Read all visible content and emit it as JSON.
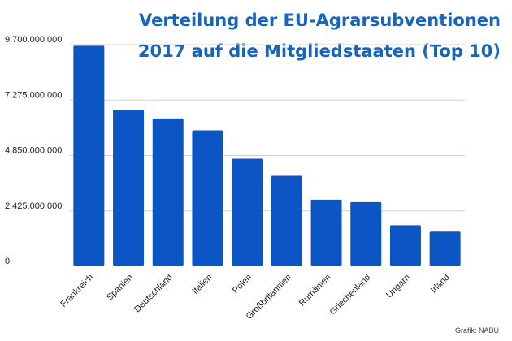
{
  "title_line1": "Verteilung der EU-Agrarsubventionen",
  "title_line2": "2017 auf die Mitgliedstaaten (Top 10)",
  "source": "Grafik: NABU",
  "colors": {
    "bar": "#0b55c5",
    "title": "#1565c0",
    "grid": "#e3c9cf",
    "axis_text": "#222222"
  },
  "chart_data": {
    "type": "bar",
    "title": "Verteilung der EU-Agrarsubventionen 2017 auf die Mitgliedstaaten (Top 10)",
    "categories": [
      "Frankreich",
      "Spanien",
      "Deutschland",
      "Italien",
      "Polen",
      "Großbritannien",
      "Rumänien",
      "Griechenland",
      "Ungarn",
      "Irland"
    ],
    "values": [
      9650000000,
      6850000000,
      6470000000,
      5950000000,
      4710000000,
      3960000000,
      2920000000,
      2810000000,
      1800000000,
      1520000000
    ],
    "y_ticks": [
      0,
      2425000000,
      4850000000,
      7275000000,
      9700000000
    ],
    "y_tick_labels": [
      "0",
      "2.425.000.000",
      "4.850.000.000",
      "7.275.000.000",
      "9.700.000.000"
    ],
    "ylim": [
      0,
      9700000000
    ],
    "grid": true
  }
}
